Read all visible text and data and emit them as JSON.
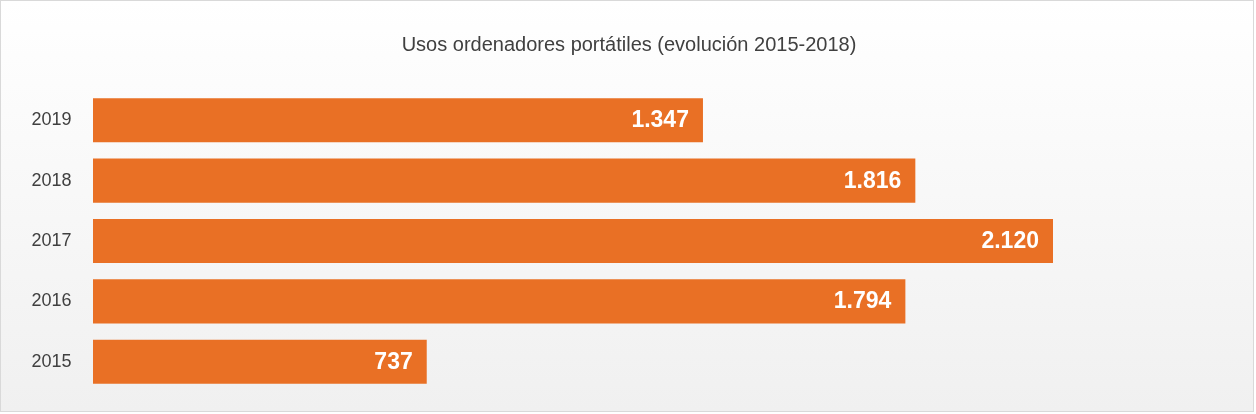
{
  "chart_data": {
    "type": "bar",
    "orientation": "horizontal",
    "title": "Usos ordenadores portátiles (evolución 2015-2018)",
    "categories": [
      "2019",
      "2018",
      "2017",
      "2016",
      "2015"
    ],
    "values": [
      1347,
      1816,
      2120,
      1794,
      737
    ],
    "value_labels": [
      "1.347",
      "1.816",
      "2.120",
      "1.794",
      "737"
    ],
    "color": "#e97025",
    "grid": false
  }
}
